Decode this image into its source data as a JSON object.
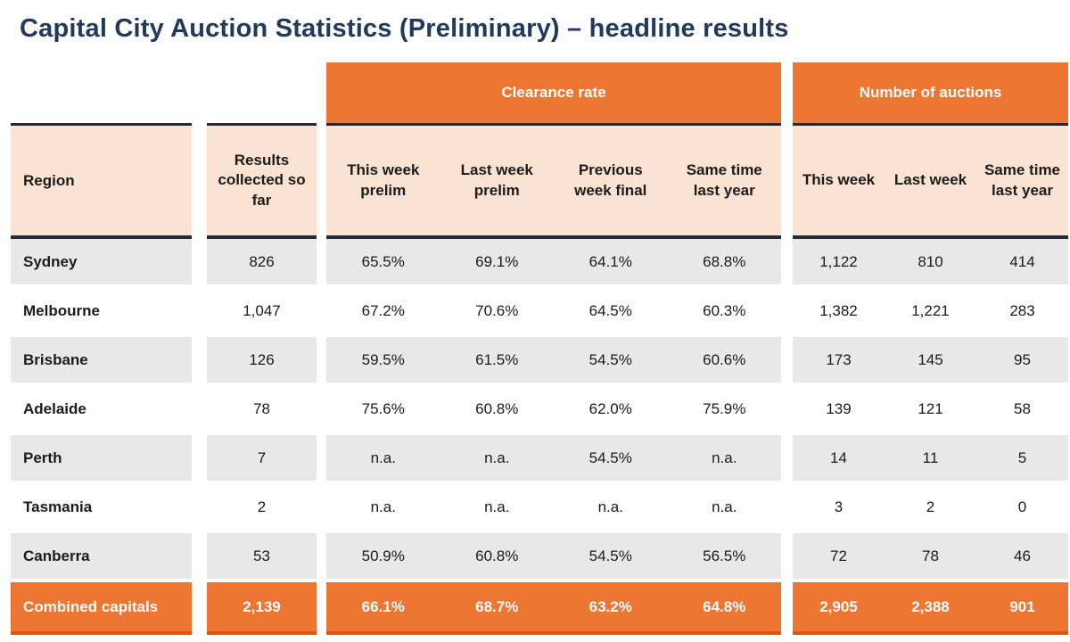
{
  "title": "Capital City Auction Statistics (Preliminary) – headline results",
  "groups": {
    "clearance": "Clearance rate",
    "auctions": "Number of auctions"
  },
  "columns": {
    "region": "Region",
    "results": "Results collected so far",
    "clearance": [
      "This week prelim",
      "Last week prelim",
      "Previous week final",
      "Same time last year"
    ],
    "auctions": [
      "This week",
      "Last week",
      "Same time last year"
    ]
  },
  "rows": [
    {
      "region": "Sydney",
      "results": "826",
      "clearance": [
        "65.5%",
        "69.1%",
        "64.1%",
        "68.8%"
      ],
      "auctions": [
        "1,122",
        "810",
        "414"
      ]
    },
    {
      "region": "Melbourne",
      "results": "1,047",
      "clearance": [
        "67.2%",
        "70.6%",
        "64.5%",
        "60.3%"
      ],
      "auctions": [
        "1,382",
        "1,221",
        "283"
      ]
    },
    {
      "region": "Brisbane",
      "results": "126",
      "clearance": [
        "59.5%",
        "61.5%",
        "54.5%",
        "60.6%"
      ],
      "auctions": [
        "173",
        "145",
        "95"
      ]
    },
    {
      "region": "Adelaide",
      "results": "78",
      "clearance": [
        "75.6%",
        "60.8%",
        "62.0%",
        "75.9%"
      ],
      "auctions": [
        "139",
        "121",
        "58"
      ]
    },
    {
      "region": "Perth",
      "results": "7",
      "clearance": [
        "n.a.",
        "n.a.",
        "54.5%",
        "n.a."
      ],
      "auctions": [
        "14",
        "11",
        "5"
      ]
    },
    {
      "region": "Tasmania",
      "results": "2",
      "clearance": [
        "n.a.",
        "n.a.",
        "n.a.",
        "n.a."
      ],
      "auctions": [
        "3",
        "2",
        "0"
      ]
    },
    {
      "region": "Canberra",
      "results": "53",
      "clearance": [
        "50.9%",
        "60.8%",
        "54.5%",
        "56.5%"
      ],
      "auctions": [
        "72",
        "78",
        "46"
      ]
    }
  ],
  "total": {
    "region": "Combined capitals",
    "results": "2,139",
    "clearance": [
      "66.1%",
      "68.7%",
      "63.2%",
      "64.8%"
    ],
    "auctions": [
      "2,905",
      "2,388",
      "901"
    ]
  },
  "colors": {
    "accent_orange": "#ED7633",
    "footer_border": "#E4530C",
    "header_peach": "#FBE3D3",
    "row_gray": "#E8E8E8",
    "dark_border": "#272B33",
    "title_navy": "#21395C"
  }
}
